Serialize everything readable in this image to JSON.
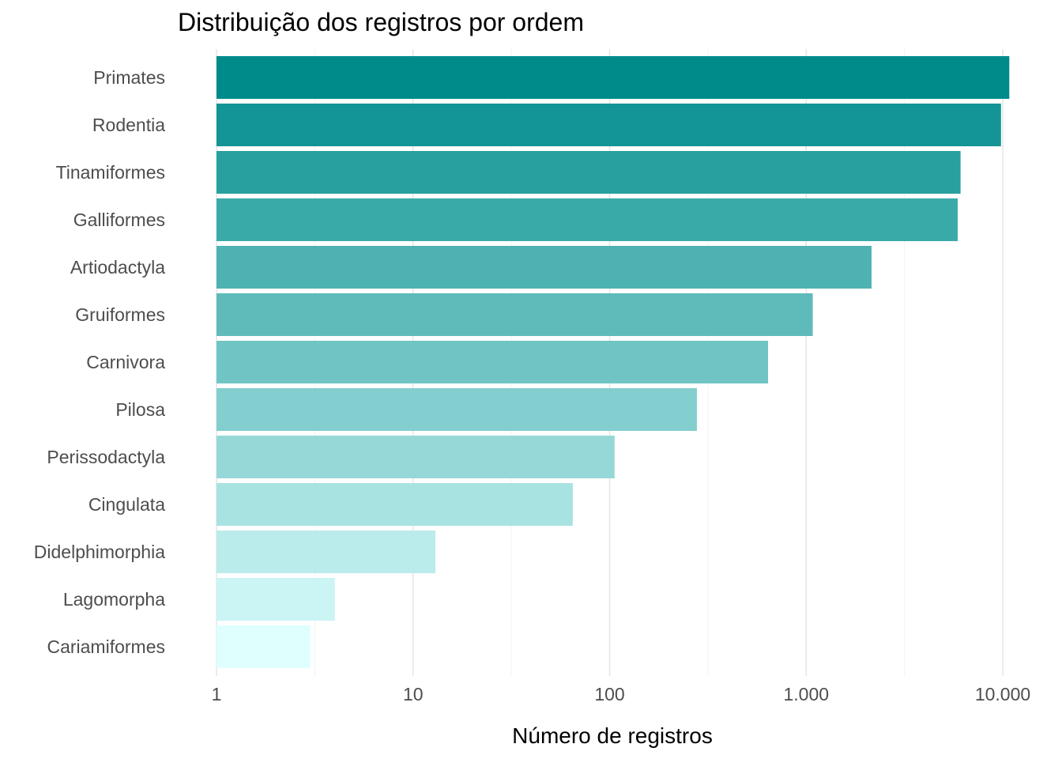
{
  "chart_data": {
    "type": "bar",
    "orientation": "horizontal",
    "title": "Distribuição dos registros por ordem",
    "xlabel": "Número de registros",
    "ylabel": "",
    "x_scale": "log10",
    "xlim": [
      1,
      10000
    ],
    "x_ticks": [
      1,
      10,
      100,
      1000,
      10000
    ],
    "x_tick_labels": [
      "1",
      "10",
      "100",
      "1.000",
      "10.000"
    ],
    "grid": "vertical major gridlines",
    "legend": "none",
    "categories": [
      "Primates",
      "Rodentia",
      "Tinamiformes",
      "Galliformes",
      "Artiodactyla",
      "Gruiformes",
      "Carnivora",
      "Pilosa",
      "Perissodactyla",
      "Cingulata",
      "Didelphimorphia",
      "Lagomorpha",
      "Cariamiformes"
    ],
    "values": [
      10800,
      9800,
      6100,
      5900,
      2150,
      1080,
      640,
      278,
      106,
      65,
      13,
      4,
      3
    ],
    "colors": [
      "#008b8b",
      "#139595",
      "#27a09f",
      "#3aaaa9",
      "#4db2b1",
      "#5ebbba",
      "#70c5c4",
      "#83cece",
      "#96d8d8",
      "#a8e3e2",
      "#baeceb",
      "#cbf4f4",
      "#dffffe"
    ]
  }
}
